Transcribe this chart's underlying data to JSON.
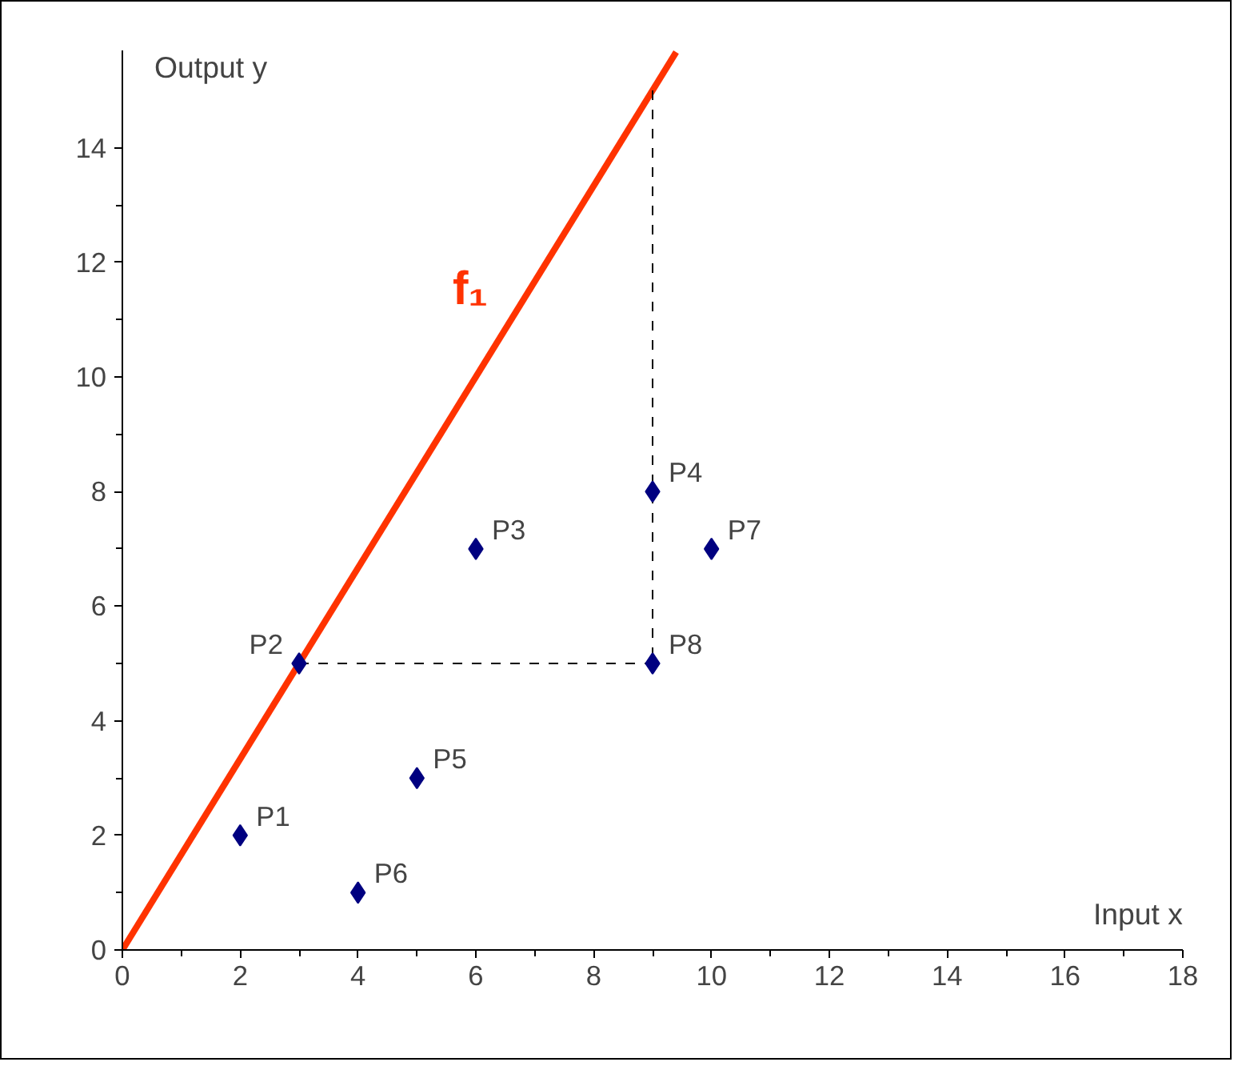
{
  "chart_data": {
    "type": "scatter",
    "xlabel": "Input x",
    "ylabel": "Output y",
    "xlim": [
      0,
      18
    ],
    "ylim": [
      0,
      15.7
    ],
    "xticks": [
      0,
      2,
      4,
      6,
      8,
      10,
      12,
      14,
      16,
      18
    ],
    "yticks": [
      0,
      2,
      4,
      6,
      8,
      10,
      12,
      14
    ],
    "grid": false,
    "marker": "diamond",
    "series": [
      {
        "color": "#000080",
        "x": [
          2,
          3,
          6,
          9,
          5,
          4,
          10,
          9
        ],
        "values": [
          2,
          5,
          7,
          8,
          3,
          1,
          7,
          5
        ]
      },
      {
        "type": "line",
        "name": "f₁",
        "color": "#ff3300",
        "x": [
          0,
          9.4
        ],
        "values": [
          0,
          15.67
        ],
        "line_style": "solid",
        "marker": "none"
      },
      {
        "type": "line",
        "color": "#000000",
        "x": [
          3,
          9
        ],
        "values": [
          5,
          5
        ],
        "line_style": "dashed",
        "marker": "none"
      },
      {
        "type": "line",
        "color": "#000000",
        "x": [
          9,
          9
        ],
        "values": [
          15,
          5
        ],
        "line_style": "dashed",
        "marker": "none"
      }
    ],
    "annotations": [
      {
        "text": "P1",
        "x": 2,
        "y": 2
      },
      {
        "text": "P2",
        "x": 3,
        "y": 5
      },
      {
        "text": "P3",
        "x": 6,
        "y": 7
      },
      {
        "text": "P4",
        "x": 9,
        "y": 8
      },
      {
        "text": "P5",
        "x": 5,
        "y": 3
      },
      {
        "text": "P6",
        "x": 4,
        "y": 1
      },
      {
        "text": "P7",
        "x": 10,
        "y": 7
      },
      {
        "text": "P8",
        "x": 9,
        "y": 5
      }
    ]
  }
}
